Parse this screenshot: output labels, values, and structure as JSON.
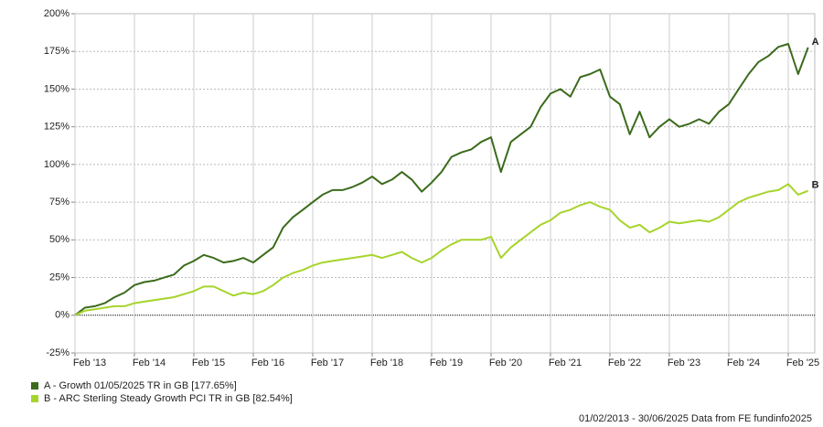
{
  "chart_data": {
    "type": "line",
    "categories": [
      "Feb '13",
      null,
      null,
      null,
      null,
      null,
      "Feb '14",
      null,
      null,
      null,
      null,
      null,
      "Feb '15",
      null,
      null,
      null,
      null,
      null,
      "Feb '16",
      null,
      null,
      null,
      null,
      null,
      "Feb '17",
      null,
      null,
      null,
      null,
      null,
      "Feb '18",
      null,
      null,
      null,
      null,
      null,
      "Feb '19",
      null,
      null,
      null,
      null,
      null,
      "Feb '20",
      null,
      null,
      null,
      null,
      null,
      "Feb '21",
      null,
      null,
      null,
      null,
      null,
      "Feb '22",
      null,
      null,
      null,
      null,
      null,
      "Feb '23",
      null,
      null,
      null,
      null,
      null,
      "Feb '24",
      null,
      null,
      null,
      null,
      null,
      "Feb '25",
      null,
      null
    ],
    "series": [
      {
        "name": "A - Growth 01/05/2025 TR in GB [177.65%]",
        "label": "A",
        "color": "#3b6b1c",
        "values": [
          0,
          5,
          6,
          8,
          12,
          15,
          20,
          22,
          23,
          25,
          27,
          33,
          36,
          40,
          38,
          35,
          36,
          38,
          35,
          40,
          45,
          58,
          65,
          70,
          75,
          80,
          83,
          83,
          85,
          88,
          92,
          87,
          90,
          95,
          90,
          82,
          88,
          95,
          105,
          108,
          110,
          115,
          118,
          95,
          115,
          120,
          125,
          138,
          147,
          150,
          145,
          158,
          160,
          163,
          145,
          140,
          120,
          135,
          118,
          125,
          130,
          125,
          127,
          130,
          127,
          135,
          140,
          150,
          160,
          168,
          172,
          178,
          180,
          160,
          177.65
        ]
      },
      {
        "name": "B - ARC Sterling Steady Growth PCI TR in GB [82.54%]",
        "label": "B",
        "color": "#a6d42c",
        "values": [
          0,
          3,
          4,
          5,
          6,
          6,
          8,
          9,
          10,
          11,
          12,
          14,
          16,
          19,
          19,
          16,
          13,
          15,
          14,
          16,
          20,
          25,
          28,
          30,
          33,
          35,
          36,
          37,
          38,
          39,
          40,
          38,
          40,
          42,
          38,
          35,
          38,
          43,
          47,
          50,
          50,
          50,
          52,
          38,
          45,
          50,
          55,
          60,
          63,
          68,
          70,
          73,
          75,
          72,
          70,
          63,
          58,
          60,
          55,
          58,
          62,
          61,
          62,
          63,
          62,
          65,
          70,
          75,
          78,
          80,
          82,
          83,
          87,
          80,
          82.54
        ]
      }
    ],
    "ylim": [
      -25,
      200
    ],
    "yticks": [
      {
        "value": -25,
        "label": "-25%"
      },
      {
        "value": 0,
        "label": "0%"
      },
      {
        "value": 25,
        "label": "25%"
      },
      {
        "value": 50,
        "label": "50%"
      },
      {
        "value": 75,
        "label": "75%"
      },
      {
        "value": 100,
        "label": "100%"
      },
      {
        "value": 125,
        "label": "125%"
      },
      {
        "value": 150,
        "label": "150%"
      },
      {
        "value": 175,
        "label": "175%"
      },
      {
        "value": 200,
        "label": "200%"
      }
    ],
    "grid": true,
    "footer": "01/02/2013 - 30/06/2025 Data from FE fundinfo2025"
  }
}
